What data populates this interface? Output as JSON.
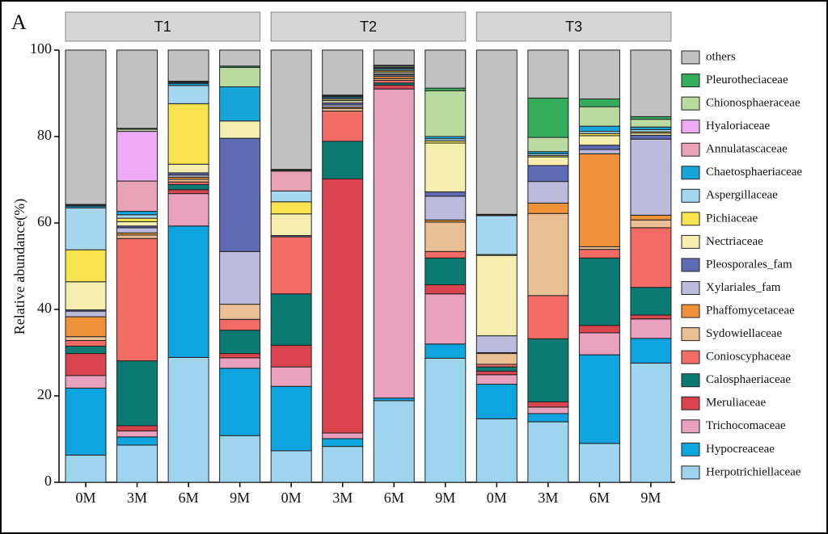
{
  "chart_data": {
    "type": "stacked_bar",
    "panel_label": "A",
    "ylabel": "Relative abundance(%)",
    "groups": [
      "T1",
      "T2",
      "T3"
    ],
    "categories": [
      "0M",
      "3M",
      "6M",
      "9M",
      "0M",
      "3M",
      "6M",
      "9M",
      "0M",
      "3M",
      "6M",
      "9M"
    ],
    "ylim": [
      0,
      100
    ],
    "yticks": [
      0,
      20,
      40,
      60,
      80,
      100
    ],
    "series": [
      {
        "name": "Herpotrichiellaceae",
        "color": "#9dd5ef",
        "values": [
          6.3,
          8.6,
          28.9,
          10.8,
          7.3,
          8.3,
          18.9,
          28.7,
          14.7,
          14.0,
          9.0,
          27.6
        ]
      },
      {
        "name": "Hypocreaceae",
        "color": "#0ea4e0",
        "values": [
          15.5,
          1.9,
          30.4,
          15.6,
          14.9,
          1.8,
          0.6,
          3.3,
          8.0,
          1.9,
          20.5,
          5.7
        ]
      },
      {
        "name": "Trichocomaceae",
        "color": "#eaa0bf",
        "values": [
          2.9,
          1.4,
          7.5,
          2.4,
          4.5,
          1.3,
          71.5,
          11.6,
          2.2,
          1.5,
          5.1,
          4.5
        ]
      },
      {
        "name": "Meruliaceae",
        "color": "#d9444f",
        "values": [
          5.1,
          1.2,
          0.9,
          1.0,
          5.0,
          58.8,
          0.9,
          2.1,
          0.8,
          1.2,
          1.7,
          0.9
        ]
      },
      {
        "name": "Calosphaeriaceae",
        "color": "#0b7a72",
        "values": [
          1.7,
          15.0,
          1.2,
          5.4,
          11.9,
          8.7,
          0.5,
          6.2,
          1.0,
          14.6,
          15.6,
          6.4
        ]
      },
      {
        "name": "Conioscyphaceae",
        "color": "#f26b65",
        "values": [
          1.3,
          28.3,
          0.6,
          2.5,
          13.2,
          7.0,
          0.6,
          1.5,
          0.6,
          10.0,
          2.0,
          13.8
        ]
      },
      {
        "name": "Sydowiellaceae",
        "color": "#ebbf94",
        "values": [
          0.9,
          0.8,
          0.6,
          3.5,
          0,
          0.6,
          0.4,
          6.8,
          2.5,
          19.0,
          0.6,
          1.8
        ]
      },
      {
        "name": "Phaffomycetaceae",
        "color": "#f0923a",
        "values": [
          4.6,
          0.5,
          0.5,
          0,
          0,
          0.3,
          0.5,
          0.5,
          0.2,
          2.4,
          21.5,
          1.1
        ]
      },
      {
        "name": "Xylariales_fam",
        "color": "#bdbbdd",
        "values": [
          1.3,
          1.2,
          0.5,
          12.2,
          0,
          0.5,
          0.3,
          5.5,
          3.9,
          5.0,
          1.0,
          17.6
        ]
      },
      {
        "name": "Pleosporales_fam",
        "color": "#5f6ab5",
        "values": [
          0.3,
          0.4,
          0.5,
          26.2,
          0.3,
          0.5,
          0.3,
          1.0,
          0,
          3.7,
          1.0,
          0.9
        ]
      },
      {
        "name": "Nectriaceae",
        "color": "#f5eeae",
        "values": [
          6.5,
          1.0,
          2.0,
          4.0,
          5.0,
          0.5,
          0.4,
          11.3,
          18.6,
          2.0,
          2.2,
          0.5
        ]
      },
      {
        "name": "Pichiaceae",
        "color": "#f7e34e",
        "values": [
          7.4,
          0.8,
          14.0,
          0,
          2.8,
          0.3,
          0.3,
          0.5,
          0.2,
          0.3,
          0.5,
          0.3
        ]
      },
      {
        "name": "Aspergillaceae",
        "color": "#a5d8f0",
        "values": [
          9.7,
          0.8,
          4.2,
          0,
          2.5,
          0.3,
          0.3,
          0.5,
          9.0,
          0.4,
          0.5,
          0.5
        ]
      },
      {
        "name": "Chaetosphaeriaceae",
        "color": "#15a5db",
        "values": [
          0.4,
          0.8,
          0.5,
          7.9,
          0,
          0.3,
          0.3,
          0.5,
          0.1,
          0.5,
          1.2,
          0.6
        ]
      },
      {
        "name": "Annulatascaceae",
        "color": "#eaa2b7",
        "values": [
          0.2,
          7.0,
          0.2,
          0,
          4.6,
          0.2,
          0.2,
          0,
          0,
          0,
          0,
          0
        ]
      },
      {
        "name": "Hyaloriaceae",
        "color": "#eeaaf5",
        "values": [
          0,
          11.5,
          0,
          0,
          0,
          0,
          0,
          0,
          0,
          0,
          0,
          0
        ]
      },
      {
        "name": "Chionosphaeraceae",
        "color": "#b9dba0",
        "values": [
          0.1,
          0.5,
          0.2,
          4.5,
          0.2,
          0.1,
          0.3,
          10.6,
          0.1,
          3.3,
          4.5,
          1.8
        ]
      },
      {
        "name": "Pleurotheciaceae",
        "color": "#36ad5a",
        "values": [
          0.1,
          0.2,
          0.1,
          0.3,
          0.2,
          0.1,
          0.2,
          0.6,
          0.1,
          9.1,
          1.8,
          0.6
        ]
      },
      {
        "name": "others",
        "color": "#c1c1c1",
        "values": [
          35.7,
          18.1,
          7.2,
          3.7,
          27.6,
          10.4,
          3.5,
          8.8,
          38.0,
          11.1,
          11.3,
          15.4
        ]
      }
    ]
  }
}
